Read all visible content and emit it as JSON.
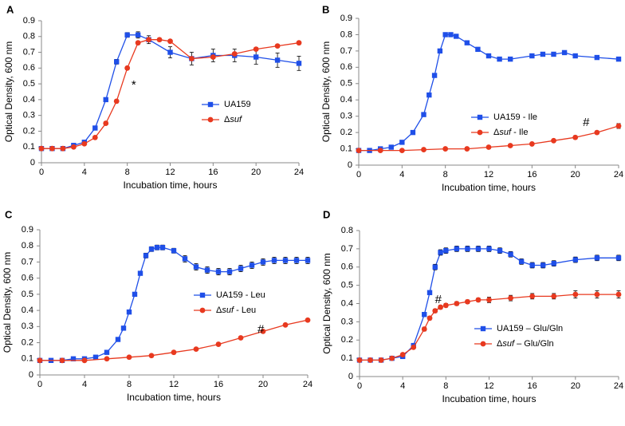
{
  "colors": {
    "ua159": "#1f4fe8",
    "suf": "#e8391f",
    "error": "#000000"
  },
  "chart_data": [
    {
      "type": "line",
      "panel": "A",
      "xlabel": "Incubation time, hours",
      "ylabel": "Optical Density, 600 nm",
      "xlim": [
        0,
        24
      ],
      "ylim": [
        0,
        0.9
      ],
      "xticks": [
        "0",
        "4",
        "8",
        "12",
        "16",
        "20",
        "24"
      ],
      "yticks": [
        "0",
        "0.1",
        "0.2",
        "0.3",
        "0.4",
        "0.5",
        "0.6",
        "0.7",
        "0.8",
        "0.9"
      ],
      "legend_position": "center-right",
      "series": [
        {
          "name": "UA159",
          "prefix": "UA159",
          "italic": "",
          "suffix": "",
          "color": "ua159",
          "marker": "square",
          "x": [
            0,
            1,
            2,
            3,
            4,
            5,
            6,
            7,
            8,
            9,
            10,
            12,
            14,
            16,
            18,
            20,
            22,
            24
          ],
          "y": [
            0.09,
            0.09,
            0.09,
            0.11,
            0.13,
            0.22,
            0.4,
            0.64,
            0.81,
            0.81,
            0.78,
            0.7,
            0.66,
            0.68,
            0.68,
            0.67,
            0.65,
            0.63
          ],
          "err": [
            0.005,
            0.005,
            0.005,
            0.005,
            0.005,
            0.01,
            0.01,
            0.015,
            0.015,
            0.02,
            0.025,
            0.035,
            0.04,
            0.04,
            0.04,
            0.045,
            0.045,
            0.045
          ]
        },
        {
          "name": "Δsuf",
          "prefix": "Δ",
          "italic": "suf",
          "suffix": "",
          "color": "suf",
          "marker": "circle",
          "x": [
            0,
            1,
            2,
            3,
            4,
            5,
            6,
            7,
            8,
            9,
            10,
            11,
            12,
            14,
            16,
            18,
            20,
            22,
            24
          ],
          "y": [
            0.09,
            0.09,
            0.09,
            0.1,
            0.12,
            0.16,
            0.25,
            0.39,
            0.6,
            0.76,
            0.78,
            0.78,
            0.77,
            0.66,
            0.67,
            0.69,
            0.72,
            0.74,
            0.76
          ],
          "err": [
            0.005,
            0.005,
            0.005,
            0.005,
            0.005,
            0.01,
            0.01,
            0.01,
            0.01,
            0.01,
            0.01,
            0.01,
            0.01,
            0.01,
            0.01,
            0.01,
            0.01,
            0.01,
            0.01
          ]
        }
      ],
      "annotations": [
        {
          "text": "*",
          "x": 8.6,
          "y": 0.49
        }
      ]
    },
    {
      "type": "line",
      "panel": "B",
      "xlabel": "Incubation time, hours",
      "ylabel": "Optical Density, 600 nm",
      "xlim": [
        0,
        24
      ],
      "ylim": [
        0,
        0.9
      ],
      "xticks": [
        "0",
        "4",
        "8",
        "12",
        "16",
        "20",
        "24"
      ],
      "yticks": [
        "0",
        "0.1",
        "0.2",
        "0.3",
        "0.4",
        "0.5",
        "0.6",
        "0.7",
        "0.8",
        "0.9"
      ],
      "legend_position": "center-right",
      "series": [
        {
          "name": "UA159 - Ile",
          "prefix": "UA159 - Ile",
          "italic": "",
          "suffix": "",
          "color": "ua159",
          "marker": "square",
          "x": [
            0,
            1,
            2,
            3,
            4,
            5,
            6,
            6.5,
            7,
            7.5,
            8,
            8.5,
            9,
            10,
            11,
            12,
            13,
            14,
            16,
            17,
            18,
            19,
            20,
            22,
            24
          ],
          "y": [
            0.09,
            0.09,
            0.1,
            0.11,
            0.14,
            0.2,
            0.31,
            0.43,
            0.55,
            0.7,
            0.8,
            0.8,
            0.79,
            0.75,
            0.71,
            0.67,
            0.65,
            0.65,
            0.67,
            0.68,
            0.68,
            0.69,
            0.67,
            0.66,
            0.65
          ],
          "err": []
        },
        {
          "name": "Δsuf - Ile",
          "prefix": "Δ",
          "italic": "suf",
          "suffix": " - Ile",
          "color": "suf",
          "marker": "circle",
          "x": [
            0,
            2,
            4,
            6,
            8,
            10,
            12,
            14,
            16,
            18,
            20,
            22,
            24
          ],
          "y": [
            0.09,
            0.09,
            0.09,
            0.095,
            0.1,
            0.1,
            0.11,
            0.12,
            0.13,
            0.15,
            0.17,
            0.2,
            0.24
          ],
          "err": [
            0,
            0,
            0,
            0,
            0,
            0,
            0,
            0,
            0,
            0,
            0.01,
            0.01,
            0.015
          ]
        }
      ],
      "annotations": [
        {
          "text": "#",
          "x": 21,
          "y": 0.26
        }
      ]
    },
    {
      "type": "line",
      "panel": "C",
      "xlabel": "Incubation time, hours",
      "ylabel": "Optical Density, 600 nm",
      "xlim": [
        0,
        24
      ],
      "ylim": [
        0,
        0.9
      ],
      "xticks": [
        "0",
        "4",
        "8",
        "12",
        "16",
        "20",
        "24"
      ],
      "yticks": [
        "0",
        "0.1",
        "0.2",
        "0.3",
        "0.4",
        "0.5",
        "0.6",
        "0.7",
        "0.8",
        "0.9"
      ],
      "legend_position": "center",
      "series": [
        {
          "name": "UA159 - Leu",
          "prefix": "UA159 - Leu",
          "italic": "",
          "suffix": "",
          "color": "ua159",
          "marker": "square",
          "x": [
            0,
            1,
            2,
            3,
            4,
            5,
            6,
            7,
            7.5,
            8,
            8.5,
            9,
            9.5,
            10,
            10.5,
            11,
            12,
            13,
            14,
            15,
            16,
            17,
            18,
            19,
            20,
            21,
            22,
            23,
            24
          ],
          "y": [
            0.09,
            0.09,
            0.09,
            0.1,
            0.1,
            0.11,
            0.14,
            0.22,
            0.29,
            0.39,
            0.5,
            0.63,
            0.74,
            0.78,
            0.79,
            0.79,
            0.77,
            0.72,
            0.67,
            0.65,
            0.64,
            0.64,
            0.66,
            0.68,
            0.7,
            0.71,
            0.71,
            0.71,
            0.71
          ],
          "err": [
            0.005,
            0.005,
            0.005,
            0.005,
            0.005,
            0.005,
            0.01,
            0.01,
            0.01,
            0.01,
            0.01,
            0.01,
            0.015,
            0.015,
            0.015,
            0.015,
            0.015,
            0.02,
            0.02,
            0.02,
            0.02,
            0.02,
            0.02,
            0.02,
            0.02,
            0.02,
            0.02,
            0.02,
            0.02
          ]
        },
        {
          "name": "Δsuf - Leu",
          "prefix": "Δ",
          "italic": "suf",
          "suffix": " - Leu",
          "color": "suf",
          "marker": "circle",
          "x": [
            0,
            2,
            4,
            6,
            8,
            10,
            12,
            14,
            16,
            18,
            20,
            22,
            24
          ],
          "y": [
            0.09,
            0.09,
            0.09,
            0.1,
            0.11,
            0.12,
            0.14,
            0.16,
            0.19,
            0.23,
            0.27,
            0.31,
            0.34
          ],
          "err": [
            0,
            0,
            0,
            0,
            0,
            0,
            0,
            0,
            0,
            0,
            0,
            0,
            0
          ]
        }
      ],
      "annotations": [
        {
          "text": "#",
          "x": 19.8,
          "y": 0.28
        }
      ]
    },
    {
      "type": "line",
      "panel": "D",
      "xlabel": "Incubation time, hours",
      "ylabel": "Optical Density, 600 nm",
      "xlim": [
        0,
        24
      ],
      "ylim": [
        0,
        0.8
      ],
      "xticks": [
        "0",
        "4",
        "8",
        "12",
        "16",
        "20",
        "24"
      ],
      "yticks": [
        "0",
        "0.1",
        "0.2",
        "0.3",
        "0.4",
        "0.5",
        "0.6",
        "0.7",
        "0.8"
      ],
      "legend_position": "bottom-right",
      "series": [
        {
          "name": "UA159 – Glu/Gln",
          "prefix": "UA159 – Glu/Gln",
          "italic": "",
          "suffix": "",
          "color": "ua159",
          "marker": "square",
          "x": [
            0,
            1,
            2,
            3,
            4,
            5,
            6,
            6.5,
            7,
            7.5,
            8,
            9,
            10,
            11,
            12,
            13,
            14,
            15,
            16,
            17,
            18,
            20,
            22,
            24
          ],
          "y": [
            0.09,
            0.09,
            0.09,
            0.1,
            0.11,
            0.17,
            0.34,
            0.46,
            0.6,
            0.68,
            0.69,
            0.7,
            0.7,
            0.7,
            0.7,
            0.69,
            0.67,
            0.63,
            0.61,
            0.61,
            0.62,
            0.64,
            0.65,
            0.65
          ],
          "err": [
            0.005,
            0.005,
            0.005,
            0.005,
            0.005,
            0.01,
            0.01,
            0.01,
            0.015,
            0.015,
            0.015,
            0.015,
            0.015,
            0.015,
            0.015,
            0.015,
            0.015,
            0.015,
            0.015,
            0.015,
            0.015,
            0.015,
            0.015,
            0.015
          ]
        },
        {
          "name": "Δsuf – Glu/Gln",
          "prefix": "Δ",
          "italic": "suf",
          "suffix": " – Glu/Gln",
          "color": "suf",
          "marker": "circle",
          "x": [
            0,
            1,
            2,
            3,
            4,
            5,
            6,
            6.5,
            7,
            7.5,
            8,
            9,
            10,
            11,
            12,
            14,
            16,
            18,
            20,
            22,
            24
          ],
          "y": [
            0.09,
            0.09,
            0.09,
            0.1,
            0.12,
            0.16,
            0.26,
            0.32,
            0.36,
            0.38,
            0.39,
            0.4,
            0.41,
            0.42,
            0.42,
            0.43,
            0.44,
            0.44,
            0.45,
            0.45,
            0.45
          ],
          "err": [
            0,
            0,
            0,
            0,
            0,
            0,
            0.01,
            0.01,
            0.01,
            0.01,
            0.01,
            0.01,
            0.01,
            0.01,
            0.015,
            0.015,
            0.015,
            0.015,
            0.02,
            0.02,
            0.02
          ]
        }
      ],
      "annotations": [
        {
          "text": "#",
          "x": 7.3,
          "y": 0.42
        }
      ]
    }
  ]
}
